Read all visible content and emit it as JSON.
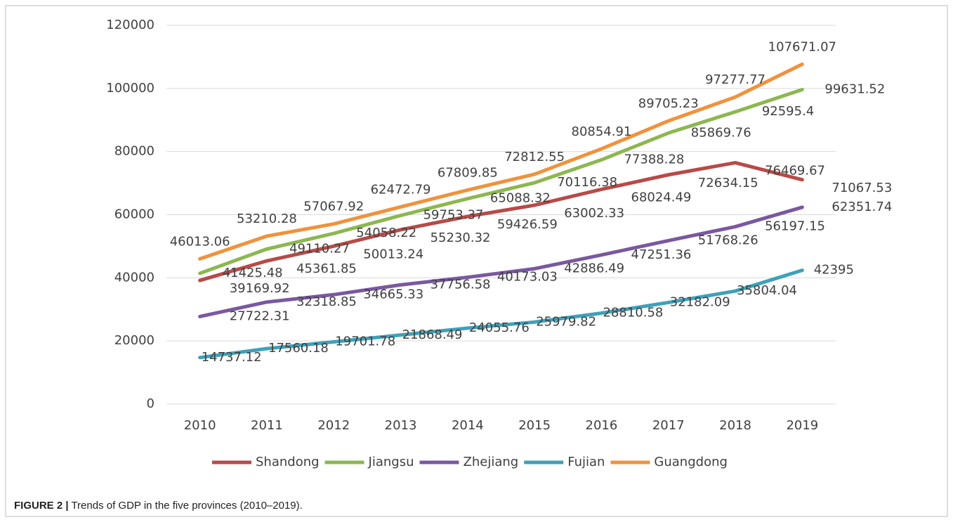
{
  "chart_data": {
    "type": "line",
    "categories": [
      "2010",
      "2011",
      "2012",
      "2013",
      "2014",
      "2015",
      "2016",
      "2017",
      "2018",
      "2019"
    ],
    "series": [
      {
        "name": "Shandong",
        "color": "#b84a47",
        "values": [
          39169.92,
          45361.85,
          50013.24,
          55230.32,
          59426.59,
          63002.33,
          68024.49,
          72634.15,
          76469.67,
          71067.53
        ]
      },
      {
        "name": "Jiangsu",
        "color": "#8db750",
        "values": [
          41425.48,
          49110.27,
          54058.22,
          59753.37,
          65088.32,
          70116.38,
          77388.28,
          85869.76,
          92595.4,
          99631.52
        ]
      },
      {
        "name": "Zhejiang",
        "color": "#7a58a0",
        "values": [
          27722.31,
          32318.85,
          34665.33,
          37756.58,
          40173.03,
          42886.49,
          47251.36,
          51768.26,
          56197.15,
          62351.74
        ]
      },
      {
        "name": "Fujian",
        "color": "#3fa1b9",
        "values": [
          14737.12,
          17560.18,
          19701.78,
          21868.49,
          24055.76,
          25979.82,
          28810.58,
          32182.09,
          35804.04,
          42395
        ]
      },
      {
        "name": "Guangdong",
        "color": "#f0923c",
        "values": [
          46013.06,
          53210.28,
          57067.92,
          62472.79,
          67809.85,
          72812.55,
          80854.91,
          89705.23,
          97277.77,
          107671.07
        ]
      }
    ],
    "ylim": [
      0,
      120000
    ],
    "yticks": [
      0,
      20000,
      40000,
      60000,
      80000,
      100000,
      120000
    ],
    "grid": true,
    "legend": "bottom"
  },
  "caption": {
    "label": "FIGURE 2 |",
    "text": "Trends of GDP in the five provinces (2010–2019)."
  }
}
